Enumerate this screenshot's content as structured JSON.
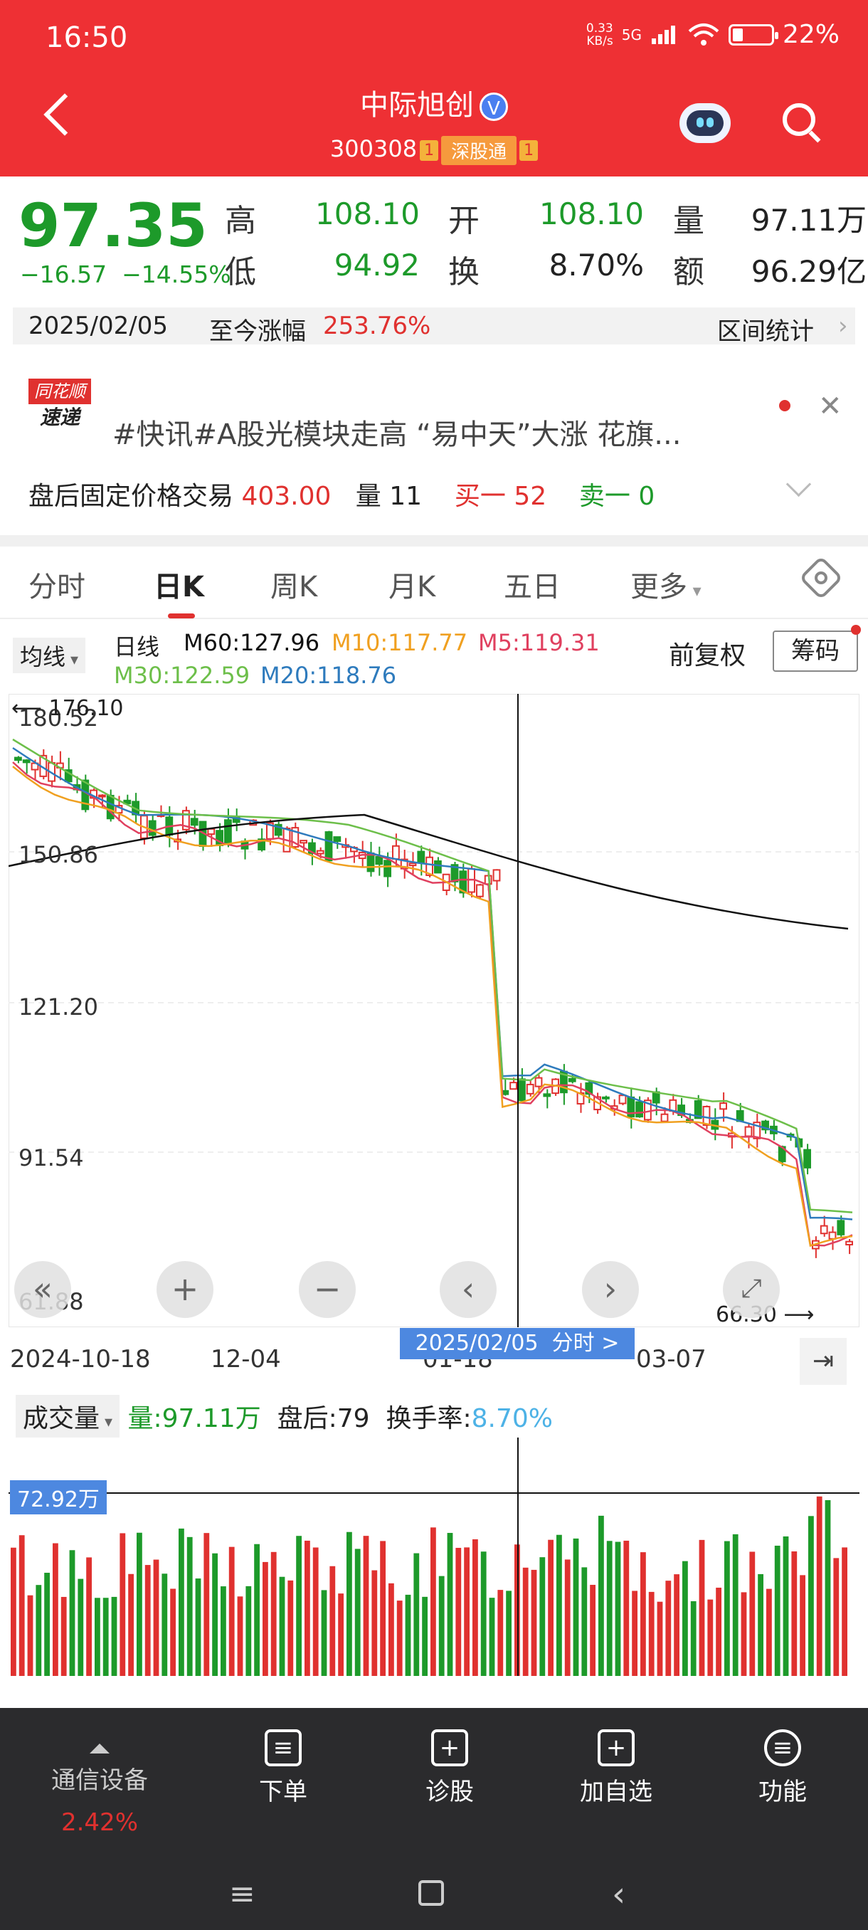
{
  "status_bar": {
    "time": "16:50",
    "net_speed": "0.33",
    "net_unit": "KB/s",
    "network": "5G",
    "battery": "22%"
  },
  "header": {
    "title": "中际旭创",
    "verified": "V",
    "code": "300308",
    "tag1": "1",
    "tag_connect": "深股通",
    "tag2": "1"
  },
  "quote": {
    "price": "97.35",
    "change": "−16.57",
    "change_pct": "−14.55%",
    "high_label": "高",
    "high": "108.10",
    "low_label": "低",
    "low": "94.92",
    "open_label": "开",
    "open": "108.10",
    "turnover_label": "换",
    "turnover": "8.70%",
    "volume_label": "量",
    "volume": "97.11万",
    "amount_label": "额",
    "amount": "96.29亿"
  },
  "date_bar": {
    "date": "2025/02/05",
    "gain_label": "至今涨幅",
    "gain": "253.76%",
    "stats_label": "区间统计"
  },
  "news": {
    "logo_top": "同花顺",
    "logo_bottom": "速递",
    "text": "#快讯#A股光模块走高 “易中天”大涨 花旗..."
  },
  "after_hours": {
    "label": "盘后固定价格交易",
    "price": "403.00",
    "vol_label": "量",
    "vol": "11",
    "buy_label": "买一",
    "buy": "52",
    "sell_label": "卖一",
    "sell": "0"
  },
  "tabs": [
    "分时",
    "日K",
    "周K",
    "月K",
    "五日",
    "更多"
  ],
  "indicators": {
    "select": "均线",
    "kline": "日线",
    "m60": "M60:127.96",
    "m10": "M10:117.77",
    "m5": "M5:119.31",
    "m30": "M30:122.59",
    "m20": "M20:118.76",
    "adjust": "前复权",
    "chip": "筹码"
  },
  "chart_data": {
    "type": "candlestick",
    "y_ticks": [
      "180.52",
      "150.86",
      "121.20",
      "91.54",
      "61.88"
    ],
    "max_marker": "176.10",
    "min_marker": "66.30",
    "x_ticks": [
      "2024-10-18",
      "12-04",
      "01-18",
      "03-07"
    ],
    "crosshair_date": "2025/02/05",
    "crosshair_label": "分时 >"
  },
  "volume_panel": {
    "select": "成交量",
    "vol": "量:97.11万",
    "after": "盘后:79",
    "turnover_label": "换手率:",
    "turnover": "8.70%",
    "level": "72.92万"
  },
  "bottom_nav": {
    "sector_name": "通信设备",
    "sector_pct": "2.42%",
    "order": "下单",
    "diagnose": "诊股",
    "add_watch": "加自选",
    "function": "功能"
  },
  "colors": {
    "up": "#e0312f",
    "down": "#1d9a2a",
    "m5": "#e0405f",
    "m10": "#f0a020",
    "m20": "#2e7bbd",
    "m30": "#6dbf4a",
    "m60": "#111111"
  }
}
